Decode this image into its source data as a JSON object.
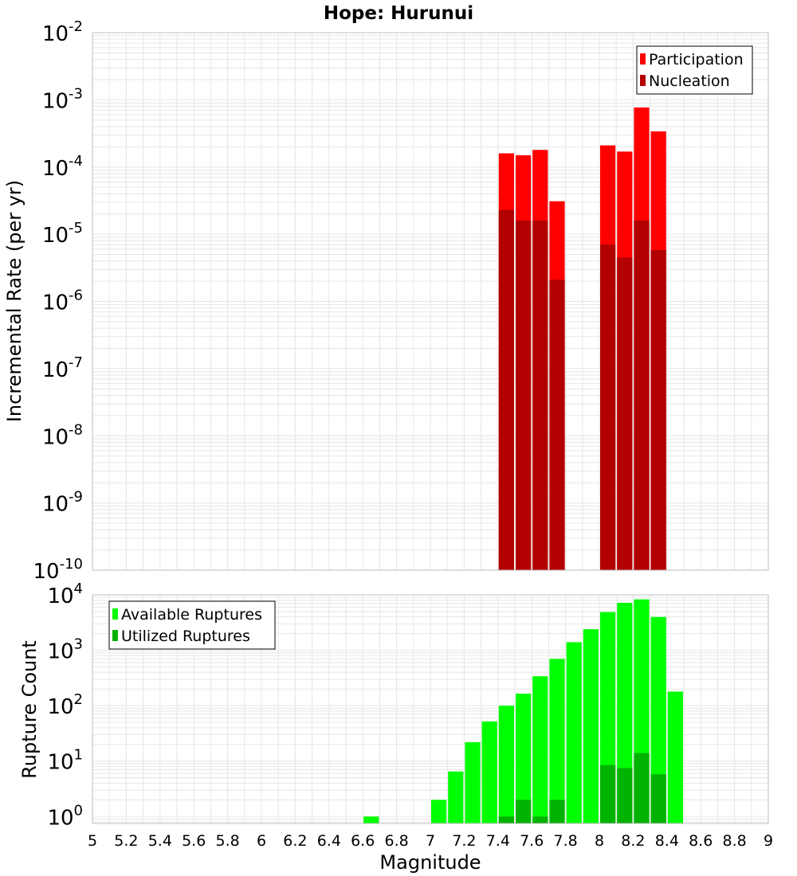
{
  "chart_data": [
    {
      "type": "bar",
      "title": "Hope: Hurunui",
      "ylabel": "Incremental Rate (per yr)",
      "y_scale": "log",
      "ylim": [
        1e-10,
        0.01
      ],
      "xlim": [
        5,
        9
      ],
      "grid": true,
      "legend_position": "top-right",
      "y_tick_exponents": [
        "-10",
        "-9",
        "-8",
        "-7",
        "-6",
        "-5",
        "-4",
        "-3",
        "-2"
      ],
      "series": [
        {
          "name": "Participation",
          "color": "#ff0000",
          "x": [
            7.45,
            7.55,
            7.65,
            7.75,
            8.05,
            8.15,
            8.25,
            8.35
          ],
          "values": [
            0.00016,
            0.00015,
            0.00018,
            3.1e-05,
            0.00021,
            0.00017,
            0.00077,
            0.00034
          ]
        },
        {
          "name": "Nucleation",
          "color": "#b20000",
          "x": [
            7.45,
            7.55,
            7.65,
            7.75,
            8.05,
            8.15,
            8.25,
            8.35
          ],
          "values": [
            2.3e-05,
            1.6e-05,
            1.6e-05,
            2.1e-06,
            7e-06,
            4.5e-06,
            1.6e-05,
            5.8e-06
          ]
        }
      ]
    },
    {
      "type": "bar",
      "ylabel": "Rupture Count",
      "xlabel": "Magnitude",
      "y_scale": "log",
      "ylim": [
        0.75,
        10000
      ],
      "xlim": [
        5,
        9
      ],
      "grid": true,
      "legend_position": "top-left",
      "y_tick_exponents": [
        "0",
        "1",
        "2",
        "3",
        "4"
      ],
      "x_ticks": [
        "5",
        "5.2",
        "5.4",
        "5.6",
        "5.8",
        "6",
        "6.2",
        "6.4",
        "6.6",
        "6.8",
        "7",
        "7.2",
        "7.4",
        "7.6",
        "7.8",
        "8",
        "8.2",
        "8.4",
        "8.6",
        "8.8",
        "9"
      ],
      "series": [
        {
          "name": "Available Ruptures",
          "color": "#00ff00",
          "x": [
            6.65,
            7.05,
            7.15,
            7.25,
            7.35,
            7.45,
            7.55,
            7.65,
            7.75,
            7.85,
            7.95,
            8.05,
            8.15,
            8.25,
            8.35,
            8.45
          ],
          "values": [
            1,
            2,
            6.5,
            22,
            52,
            100,
            165,
            340,
            700,
            1400,
            2400,
            4900,
            7200,
            8300,
            4000,
            180
          ]
        },
        {
          "name": "Utilized Ruptures",
          "color": "#00b300",
          "x": [
            7.45,
            7.55,
            7.65,
            7.75,
            8.05,
            8.15,
            8.25,
            8.35
          ],
          "values": [
            1,
            2,
            1,
            2,
            8.5,
            7.5,
            14,
            5.8
          ]
        }
      ]
    }
  ]
}
